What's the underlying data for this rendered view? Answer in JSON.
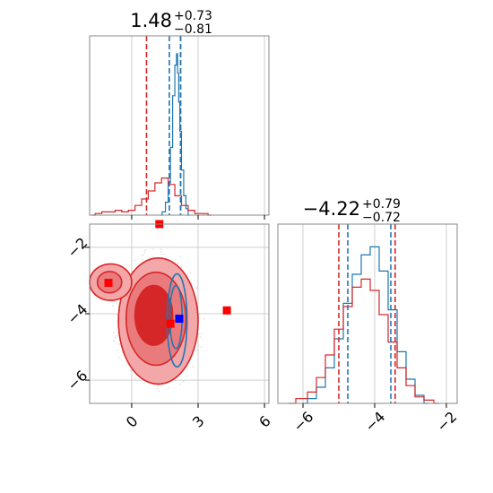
{
  "chart_data": [
    {
      "type": "line",
      "panel": "marginal-x",
      "title": {
        "main": "1.48",
        "sup": "+0.73",
        "sub": "−0.81"
      },
      "xlim": [
        -1.9,
        6.2
      ],
      "grid": true,
      "xticks": [
        0,
        3,
        6
      ],
      "series": [
        {
          "color": "#1f77b4",
          "x": [
            1.3,
            1.45,
            1.6,
            1.7,
            1.8,
            1.9,
            2.0,
            2.05,
            2.1,
            2.15,
            2.2,
            2.3,
            2.4,
            2.5,
            2.6
          ],
          "y": [
            0,
            0.02,
            0.08,
            0.2,
            0.42,
            0.74,
            0.93,
            1.0,
            0.88,
            0.7,
            0.52,
            0.28,
            0.12,
            0.04,
            0
          ]
        },
        {
          "color": "#d62728",
          "x": [
            -1.8,
            -1.5,
            -1.2,
            -0.9,
            -0.6,
            -0.3,
            0.0,
            0.3,
            0.6,
            0.9,
            1.2,
            1.5,
            1.8,
            2.1,
            2.4,
            2.7,
            3.0,
            3.3,
            3.6
          ],
          "y": [
            0,
            0.01,
            0.02,
            0.02,
            0.03,
            0.02,
            0.03,
            0.06,
            0.1,
            0.15,
            0.2,
            0.23,
            0.19,
            0.12,
            0.06,
            0.03,
            0.01,
            0.01,
            0
          ]
        }
      ],
      "vlines": [
        {
          "color": "#d62728",
          "x": [
            0.67,
            2.21
          ]
        },
        {
          "color": "#1f77b4",
          "x": [
            1.7,
            2.21
          ]
        }
      ]
    },
    {
      "type": "line",
      "panel": "marginal-y",
      "title": {
        "main": "−4.22",
        "sup": "+0.79",
        "sub": "−0.72"
      },
      "xlim": [
        -6.7,
        -1.7
      ],
      "grid": true,
      "xticks": [
        -6,
        -4,
        -2
      ],
      "series": [
        {
          "color": "#1f77b4",
          "x": [
            -6.0,
            -5.75,
            -5.5,
            -5.25,
            -5.0,
            -4.75,
            -4.5,
            -4.25,
            -4.0,
            -3.75,
            -3.5,
            -3.25,
            -3.0,
            -2.75,
            -2.5
          ],
          "y": [
            0,
            0.03,
            0.1,
            0.22,
            0.4,
            0.62,
            0.8,
            0.92,
            0.97,
            0.82,
            0.58,
            0.32,
            0.15,
            0.05,
            0
          ]
        },
        {
          "color": "#d62728",
          "x": [
            -6.4,
            -6.0,
            -5.75,
            -5.5,
            -5.25,
            -5.0,
            -4.75,
            -4.5,
            -4.25,
            -4.0,
            -3.75,
            -3.5,
            -3.25,
            -3.0,
            -2.75,
            -2.5,
            -2.2
          ],
          "y": [
            0,
            0.03,
            0.07,
            0.16,
            0.3,
            0.46,
            0.6,
            0.72,
            0.77,
            0.7,
            0.55,
            0.38,
            0.22,
            0.11,
            0.04,
            0.02,
            0
          ]
        }
      ],
      "vlines": [
        {
          "color": "#d62728",
          "x": [
            -5.0,
            -3.43
          ]
        },
        {
          "color": "#1f77b4",
          "x": [
            -4.75,
            -3.55
          ]
        }
      ]
    },
    {
      "type": "scatter",
      "panel": "joint",
      "xlim": [
        -1.9,
        6.2
      ],
      "ylim": [
        -6.7,
        -1.3
      ],
      "grid": true,
      "xticks": [
        0,
        3,
        6
      ],
      "yticks": [
        -2,
        -4,
        -6
      ],
      "contours": [
        {
          "color": "#d62728",
          "levels": [
            {
              "cx": 1.2,
              "cy": -4.22,
              "rx": 1.8,
              "ry": 1.9,
              "fill": "#f4a7a8"
            },
            {
              "cx": 1.1,
              "cy": -4.15,
              "rx": 1.35,
              "ry": 1.4,
              "fill": "#ea7b7d"
            },
            {
              "cx": 1.0,
              "cy": -4.05,
              "rx": 0.85,
              "ry": 0.9,
              "fill": "#d62728"
            }
          ]
        },
        {
          "color": "#d62728",
          "levels": [
            {
              "cx": -0.95,
              "cy": -3.05,
              "rx": 0.95,
              "ry": 0.55,
              "fill": "#f4a7a8"
            },
            {
              "cx": -1.0,
              "cy": -3.05,
              "rx": 0.55,
              "ry": 0.32,
              "fill": "#ea7b7d"
            }
          ]
        },
        {
          "color": "#1f77b4",
          "levels": [
            {
              "cx": 2.05,
              "cy": -4.2,
              "rx": 0.45,
              "ry": 1.4
            },
            {
              "cx": 2.0,
              "cy": -4.1,
              "rx": 0.28,
              "ry": 0.95
            }
          ]
        }
      ],
      "points": [
        {
          "color": "#ff0000",
          "x": -1.05,
          "y": -3.07
        },
        {
          "color": "#ff0000",
          "x": 1.25,
          "y": -1.3
        },
        {
          "color": "#ff0000",
          "x": 1.75,
          "y": -4.3
        },
        {
          "color": "#ff0000",
          "x": 4.3,
          "y": -3.9
        },
        {
          "color": "#0000ff",
          "x": 2.15,
          "y": -4.15
        }
      ]
    }
  ]
}
